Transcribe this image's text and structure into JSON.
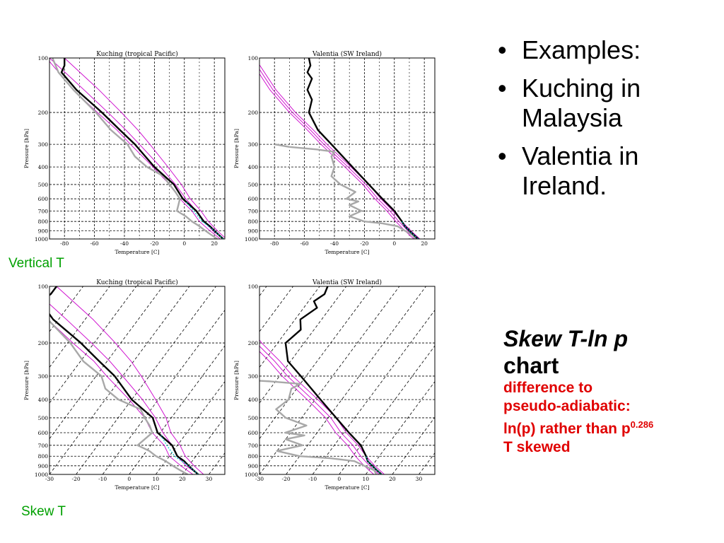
{
  "slide": {
    "bullets": [
      "Examples:",
      "Kuching in Malaysia",
      "Valentia in Ireland."
    ],
    "bullet_glyph": "•",
    "label_vertical": "Vertical T",
    "label_skew": "Skew T",
    "skew_title": "Skew T-ln p",
    "skew_sub": "chart",
    "red_line1": "difference to",
    "red_line2": "pseudo-adiabatic:",
    "red_line3_pre": "ln(p) rather than p",
    "red_line3_sup": "0.286",
    "red_line4": "T skewed",
    "colors": {
      "label_green": "#00a000",
      "red_text": "#e00000",
      "temp": "#000000",
      "dew": "#a8a8a8",
      "adiabat": "#cc00cc",
      "parcel": "#00cccc"
    }
  },
  "chart_data": [
    {
      "type": "line",
      "title": "Kuching (tropical Pacific)",
      "xlabel": "Temperature [C]",
      "ylabel": "Pressure [hPa]",
      "skewed": false,
      "xlim": [
        -90,
        27
      ],
      "ylim": [
        1000,
        100
      ],
      "ylog": true,
      "xticks": [
        -80,
        -60,
        -40,
        -20,
        0,
        20
      ],
      "yticks": [
        100,
        200,
        300,
        400,
        500,
        600,
        700,
        800,
        900,
        1000
      ],
      "series": [
        {
          "role": "temperature",
          "p": [
            1000,
            950,
            900,
            850,
            800,
            700,
            600,
            500,
            400,
            300,
            250,
            200,
            150,
            120,
            110,
            100
          ],
          "t": [
            26,
            23,
            20,
            17,
            13,
            8,
            -1,
            -7,
            -20,
            -33,
            -43,
            -55,
            -72,
            -82,
            -80,
            -80
          ]
        },
        {
          "role": "dewpoint",
          "p": [
            1000,
            950,
            900,
            850,
            800,
            750,
            700,
            650,
            600,
            550,
            500,
            450,
            400,
            350,
            300,
            250,
            200,
            150,
            120,
            100
          ],
          "t": [
            22,
            18,
            14,
            10,
            5,
            1,
            -5,
            -4,
            -3,
            -6,
            -10,
            -14,
            -25,
            -33,
            -38,
            -49,
            -59,
            -74,
            -84,
            -88
          ]
        },
        {
          "role": "adiabat",
          "p": [
            1000,
            900,
            800,
            700,
            600,
            500,
            400,
            300,
            250,
            200,
            150,
            100
          ],
          "t": [
            26,
            19,
            13,
            8,
            1,
            -6,
            -16,
            -30,
            -39,
            -51,
            -67,
            -90
          ]
        },
        {
          "role": "adiabat",
          "p": [
            1000,
            900,
            800,
            700,
            600,
            500,
            400,
            300,
            250,
            200,
            150,
            100
          ],
          "t": [
            28,
            22,
            16,
            11,
            4,
            -2,
            -11,
            -23,
            -31,
            -42,
            -57,
            -80
          ]
        },
        {
          "role": "adiabat",
          "p": [
            1000,
            900,
            800,
            700,
            600,
            500,
            400,
            300,
            250,
            200,
            150,
            100
          ],
          "t": [
            24,
            17,
            10,
            5,
            -3,
            -10,
            -21,
            -36,
            -45,
            -58,
            -74,
            -92
          ]
        },
        {
          "role": "parcel",
          "p": [
            1000,
            950,
            900,
            850,
            800,
            700,
            620
          ],
          "t": [
            26,
            23,
            20,
            16,
            12,
            6,
            1
          ]
        }
      ]
    },
    {
      "type": "line",
      "title": "Valentia (SW Ireland)",
      "xlabel": "Temperature [C]",
      "ylabel": "Pressure [hPa]",
      "skewed": false,
      "xlim": [
        -90,
        27
      ],
      "ylim": [
        1000,
        100
      ],
      "ylog": true,
      "xticks": [
        -80,
        -60,
        -40,
        -20,
        0,
        20
      ],
      "yticks": [
        100,
        200,
        300,
        400,
        500,
        600,
        700,
        800,
        900,
        1000
      ],
      "series": [
        {
          "role": "temperature",
          "p": [
            1000,
            950,
            900,
            850,
            800,
            700,
            600,
            500,
            400,
            300,
            250,
            200,
            170,
            150,
            130,
            120,
            110,
            100
          ],
          "t": [
            16,
            13,
            10,
            7,
            5,
            0,
            -8,
            -17,
            -28,
            -42,
            -51,
            -57,
            -55,
            -58,
            -55,
            -58,
            -56,
            -57
          ]
        },
        {
          "role": "dewpoint",
          "p": [
            1000,
            950,
            900,
            850,
            820,
            800,
            750,
            700,
            650,
            620,
            600,
            550,
            500,
            450,
            400,
            350,
            330,
            320,
            310,
            300
          ],
          "t": [
            14,
            12,
            7,
            2,
            -8,
            -20,
            -30,
            -22,
            -30,
            -24,
            -32,
            -26,
            -36,
            -42,
            -40,
            -42,
            -40,
            -52,
            -70,
            -80
          ]
        },
        {
          "role": "adiabat",
          "p": [
            1000,
            900,
            800,
            700,
            600,
            500,
            400,
            300,
            250,
            200,
            150,
            100
          ],
          "t": [
            15,
            9,
            3,
            -3,
            -11,
            -19,
            -31,
            -47,
            -56,
            -68,
            -81,
            -95
          ]
        },
        {
          "role": "adiabat",
          "p": [
            1000,
            900,
            800,
            700,
            600,
            500,
            400,
            300,
            250,
            200,
            150,
            100
          ],
          "t": [
            17,
            11,
            5,
            -1,
            -9,
            -17,
            -29,
            -45,
            -54,
            -66,
            -79,
            -93
          ]
        },
        {
          "role": "adiabat",
          "p": [
            1000,
            900,
            800,
            700,
            600,
            500,
            400,
            300,
            250,
            200,
            150,
            100
          ],
          "t": [
            13,
            7,
            1,
            -5,
            -13,
            -21,
            -33,
            -49,
            -58,
            -70,
            -83,
            -97
          ]
        },
        {
          "role": "parcel",
          "p": [
            1000,
            950,
            900,
            850,
            800
          ],
          "t": [
            16,
            13,
            10,
            7,
            5
          ]
        }
      ]
    },
    {
      "type": "line",
      "title": "Kuching (tropical Pacific)",
      "xlabel": "Temperature [C]",
      "ylabel": "Pressure [hPa]",
      "skewed": true,
      "xlim": [
        -30,
        36
      ],
      "ylim": [
        1000,
        100
      ],
      "ylog": true,
      "xticks": [
        -30,
        -20,
        -10,
        0,
        10,
        20,
        30
      ],
      "yticks": [
        100,
        200,
        300,
        400,
        500,
        600,
        700,
        800,
        900,
        1000
      ],
      "series": [
        {
          "role": "temperature",
          "p": [
            1000,
            950,
            900,
            850,
            800,
            700,
            600,
            500,
            400,
            300,
            250,
            200,
            150,
            120,
            110,
            100
          ],
          "t": [
            26,
            23,
            20,
            17,
            13,
            8,
            -1,
            -7,
            -20,
            -33,
            -43,
            -55,
            -72,
            -82,
            -80,
            -80
          ]
        },
        {
          "role": "dewpoint",
          "p": [
            1000,
            950,
            900,
            850,
            800,
            750,
            700,
            650,
            600,
            550,
            500,
            450,
            400,
            350,
            300,
            250,
            200,
            150,
            120,
            100
          ],
          "t": [
            22,
            18,
            14,
            10,
            5,
            1,
            -5,
            -4,
            -3,
            -6,
            -10,
            -14,
            -25,
            -33,
            -38,
            -49,
            -59,
            -74,
            -84,
            -88
          ]
        },
        {
          "role": "adiabat",
          "p": [
            1000,
            900,
            800,
            700,
            600,
            500,
            400,
            300,
            250,
            200,
            150,
            100
          ],
          "t": [
            26,
            19,
            13,
            8,
            1,
            -6,
            -16,
            -30,
            -39,
            -51,
            -67,
            -90
          ]
        },
        {
          "role": "adiabat",
          "p": [
            1000,
            900,
            800,
            700,
            600,
            500,
            400,
            300,
            250,
            200,
            150,
            100
          ],
          "t": [
            28,
            22,
            16,
            11,
            4,
            -2,
            -11,
            -23,
            -31,
            -42,
            -57,
            -80
          ]
        },
        {
          "role": "adiabat",
          "p": [
            1000,
            900,
            800,
            700,
            600,
            500,
            400,
            300,
            250,
            200,
            150,
            100
          ],
          "t": [
            24,
            17,
            10,
            5,
            -3,
            -10,
            -21,
            -36,
            -45,
            -58,
            -74,
            -92
          ]
        },
        {
          "role": "parcel",
          "p": [
            1000,
            950,
            900,
            850,
            800,
            700,
            620
          ],
          "t": [
            26,
            23,
            20,
            16,
            12,
            6,
            1
          ]
        }
      ]
    },
    {
      "type": "line",
      "title": "Valentia (SW Ireland)",
      "xlabel": "Temperature [C]",
      "ylabel": "Pressure [hPa]",
      "skewed": true,
      "xlim": [
        -30,
        36
      ],
      "ylim": [
        1000,
        100
      ],
      "ylog": true,
      "xticks": [
        -30,
        -20,
        -10,
        0,
        10,
        20,
        30
      ],
      "yticks": [
        100,
        200,
        300,
        400,
        500,
        600,
        700,
        800,
        900,
        1000
      ],
      "series": [
        {
          "role": "temperature",
          "p": [
            1000,
            950,
            900,
            850,
            800,
            700,
            600,
            500,
            400,
            300,
            250,
            200,
            170,
            150,
            130,
            120,
            110,
            100
          ],
          "t": [
            16,
            13,
            10,
            7,
            5,
            0,
            -8,
            -17,
            -28,
            -42,
            -51,
            -57,
            -55,
            -58,
            -55,
            -58,
            -56,
            -57
          ]
        },
        {
          "role": "dewpoint",
          "p": [
            1000,
            950,
            900,
            850,
            820,
            800,
            750,
            700,
            650,
            620,
            600,
            550,
            500,
            450,
            400,
            350,
            330,
            320,
            310,
            300
          ],
          "t": [
            14,
            12,
            7,
            2,
            -8,
            -20,
            -30,
            -22,
            -30,
            -24,
            -32,
            -26,
            -36,
            -42,
            -40,
            -42,
            -40,
            -52,
            -70,
            -80
          ]
        },
        {
          "role": "adiabat",
          "p": [
            1000,
            900,
            800,
            700,
            600,
            500,
            400,
            300,
            250,
            200,
            150,
            100
          ],
          "t": [
            15,
            9,
            3,
            -3,
            -11,
            -19,
            -31,
            -47,
            -56,
            -68,
            -81,
            -95
          ]
        },
        {
          "role": "adiabat",
          "p": [
            1000,
            900,
            800,
            700,
            600,
            500,
            400,
            300,
            250,
            200,
            150,
            100
          ],
          "t": [
            17,
            11,
            5,
            -1,
            -9,
            -17,
            -29,
            -45,
            -54,
            -66,
            -79,
            -93
          ]
        },
        {
          "role": "adiabat",
          "p": [
            1000,
            900,
            800,
            700,
            600,
            500,
            400,
            300,
            250,
            200,
            150,
            100
          ],
          "t": [
            13,
            7,
            1,
            -5,
            -13,
            -21,
            -33,
            -49,
            -58,
            -70,
            -83,
            -97
          ]
        },
        {
          "role": "parcel",
          "p": [
            1000,
            950,
            900,
            850,
            800
          ],
          "t": [
            16,
            13,
            10,
            7,
            5
          ]
        }
      ]
    }
  ]
}
